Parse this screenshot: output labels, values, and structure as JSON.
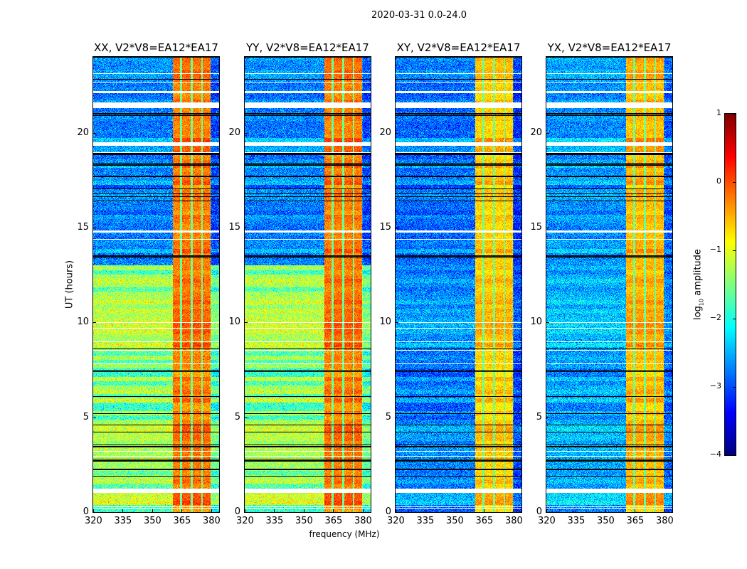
{
  "chart_data": {
    "type": "heatmap",
    "title": "2020-03-31 0.0-24.0",
    "xlabel": "frequency (MHz)",
    "ylabel": "UT (hours)",
    "xlim": [
      320,
      384
    ],
    "ylim": [
      0,
      24
    ],
    "xticks": [
      320,
      335,
      350,
      365,
      380
    ],
    "yticks": [
      0,
      5,
      10,
      15,
      20
    ],
    "colormap": "jet",
    "colorbar": {
      "label_main": "log",
      "label_sub": "10",
      "label_rest": " amplitude",
      "range": [
        -4,
        1
      ],
      "ticks": [
        -4,
        -3,
        -2,
        -1,
        0,
        1
      ],
      "tick_labels": [
        "−4",
        "−3",
        "−2",
        "−1",
        "0",
        "1"
      ]
    },
    "rfi_band_mhz": [
      360.4,
      379.6
    ],
    "rfi_gap_channels_mhz": [
      364.6,
      370.0,
      375.4
    ],
    "flagged_hours": [
      [
        1.0,
        1.25
      ],
      [
        19.3,
        19.5
      ],
      [
        21.3,
        21.6
      ],
      [
        22.1,
        22.2
      ],
      [
        23.1,
        23.15
      ],
      [
        14.75,
        14.85
      ],
      [
        0.25,
        0.3
      ]
    ],
    "black_row_hours": [
      2.25,
      2.7,
      2.8,
      3.45,
      3.55,
      4.6,
      5.2,
      6.1,
      7.4,
      13.4,
      13.5,
      16.4,
      17.7,
      18.3,
      18.4,
      18.9,
      20.9,
      21.0
    ],
    "panels": [
      {
        "title": "XX, V2*V8=EA12*EA17",
        "background_log_amp_early": -1.3,
        "background_log_amp_late": -2.4,
        "band_log_amp": -0.2
      },
      {
        "title": "YY, V2*V8=EA12*EA17",
        "background_log_amp_early": -1.3,
        "background_log_amp_late": -2.4,
        "band_log_amp": -0.2
      },
      {
        "title": "XY, V2*V8=EA12*EA17",
        "background_log_amp_early": -2.4,
        "background_log_amp_late": -2.5,
        "band_log_amp": -0.6
      },
      {
        "title": "YX, V2*V8=EA12*EA17",
        "background_log_amp_early": -2.2,
        "background_log_amp_late": -2.3,
        "band_log_amp": -0.5
      }
    ]
  }
}
